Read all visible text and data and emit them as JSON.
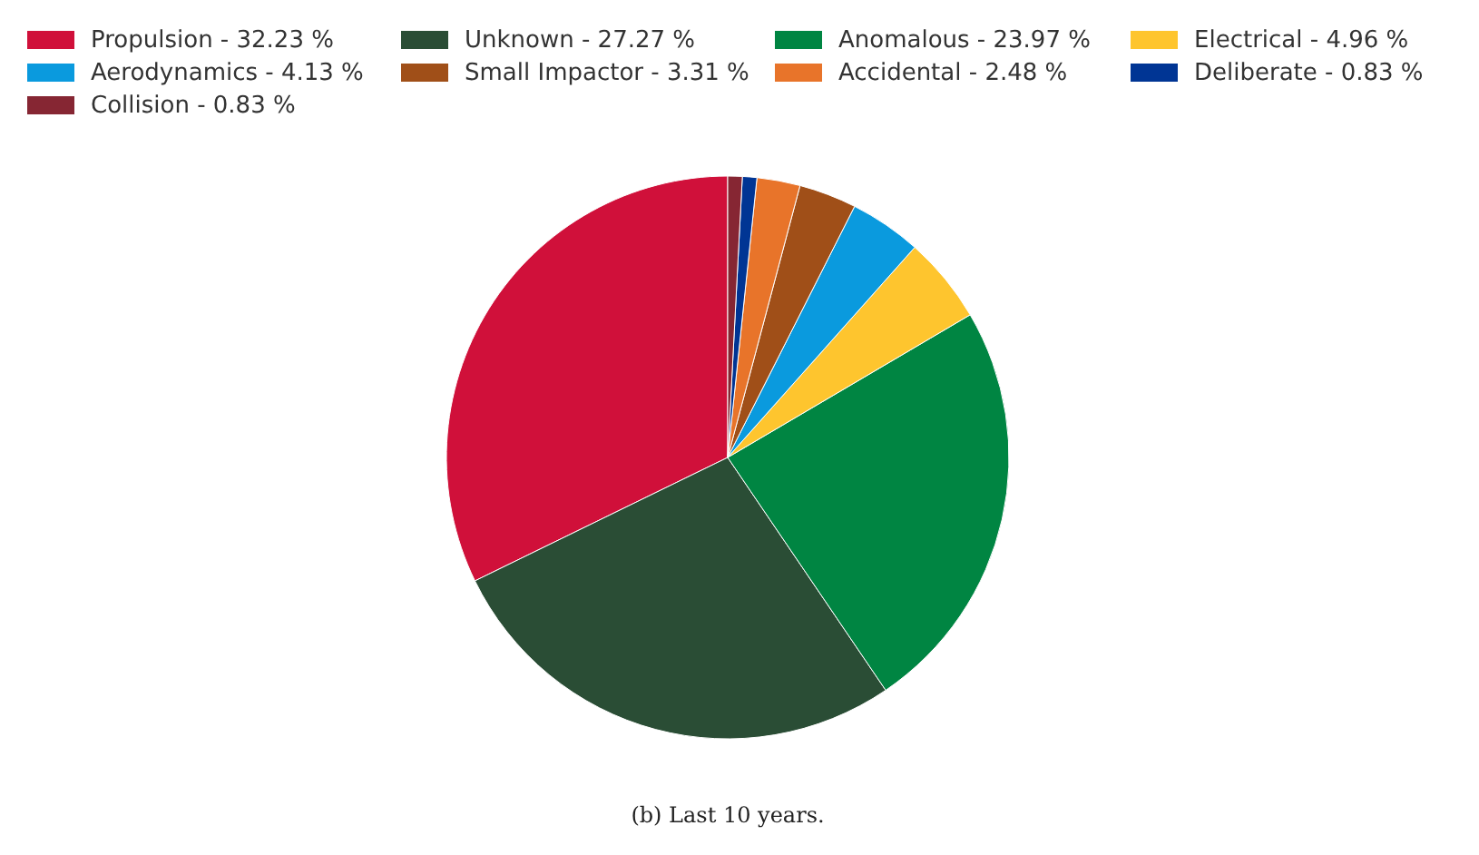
{
  "chart_data": {
    "type": "pie",
    "categories": [
      "Propulsion - 32.23 %",
      "Unknown - 27.27 %",
      "Anomalous - 23.97 %",
      "Electrical - 4.96 %",
      "Aerodynamics - 4.13 %",
      "Small Impactor - 3.31 %",
      "Accidental - 2.48 %",
      "Deliberate - 0.83 %",
      "Collision - 0.83 %"
    ],
    "values": [
      32.23,
      27.27,
      23.97,
      4.96,
      4.13,
      3.31,
      2.48,
      0.83,
      0.83
    ],
    "colors": [
      "#d0103a",
      "#2a4d35",
      "#008542",
      "#fec52e",
      "#0a9ade",
      "#a04f18",
      "#e8742a",
      "#003594",
      "#862633"
    ],
    "legend": "top left",
    "annotations": [
      "(b) Last 10 years."
    ]
  }
}
